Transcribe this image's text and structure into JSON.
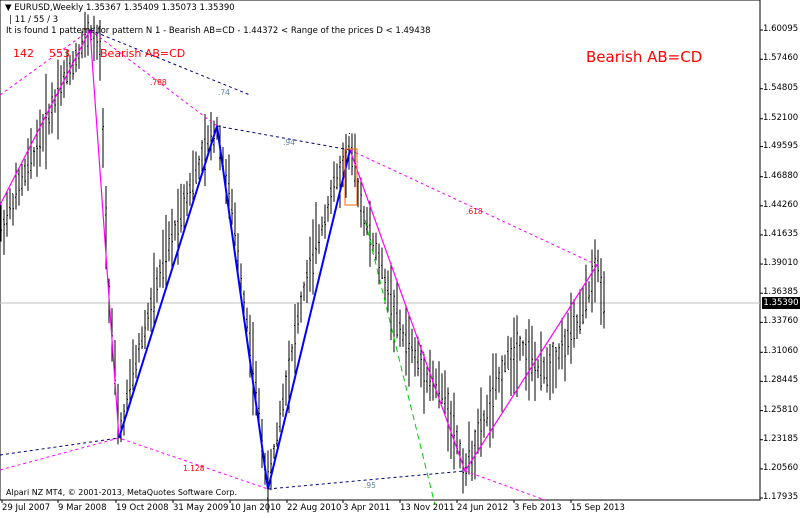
{
  "header": {
    "line1": "▼ EURUSD,Weekly  1.35367 1.35409 1.35073 1.35390",
    "line2": "| 11 / 55 / 3",
    "line3": "It is found 1 patterns for pattern N 1 - Bearish AB=CD - 1.44372 < Range of the prices D < 1.49438"
  },
  "labels": {
    "big_title": "Bearish AB=CD",
    "small_title": "Bearish AB=CD",
    "num_142": "142",
    "num_553": "553",
    "ratio_788": ".788",
    "ratio_74": ".74",
    "ratio_94": ".94",
    "ratio_618": ".618",
    "ratio_1128": "1.128",
    "ratio_95": ".95"
  },
  "current_price": "1.35390",
  "copyright": "Alpari NZ MT4, © 2001-2013, MetaQuotes Software Corp.",
  "colors": {
    "bull": "#ff00ff",
    "zigzag": "#0000ff",
    "projection": "#00cc00",
    "diag": "#000080",
    "rect": "#ff6600"
  },
  "chart_data": {
    "type": "line",
    "symbol": "EURUSD",
    "timeframe": "Weekly",
    "ylim": [
      1.17,
      1.61
    ],
    "price_labels": [
      "1.60095",
      "1.57460",
      "1.54805",
      "1.52100",
      "1.49595",
      "1.46880",
      "1.44260",
      "1.41635",
      "1.39010",
      "1.36385",
      "1.35390",
      "1.33760",
      "1.31060",
      "1.28445",
      "1.25810",
      "1.23185",
      "1.20560",
      "1.17935"
    ],
    "date_labels": [
      "29 Jul 2007",
      "9 Mar 2008",
      "19 Oct 2008",
      "31 May 2009",
      "10 Jan 2010",
      "22 Aug 2010",
      "3 Apr 2011",
      "13 Nov 2011",
      "24 Jun 2012",
      "3 Feb 2013",
      "15 Sep 2013"
    ],
    "pattern": {
      "name": "Bearish AB=CD",
      "points": [
        {
          "date": "Jul 2008",
          "price": 1.601
        },
        {
          "date": "Oct 2008",
          "price": 1.233
        },
        {
          "date": "Nov 2009",
          "price": 1.514
        },
        {
          "date": "Jun 2010",
          "price": 1.188
        },
        {
          "date": "Apr 2011",
          "price": 1.494
        },
        {
          "date": "Jul 2012",
          "price": 1.204
        },
        {
          "date": "Oct 2013",
          "price": 1.389
        }
      ]
    }
  }
}
